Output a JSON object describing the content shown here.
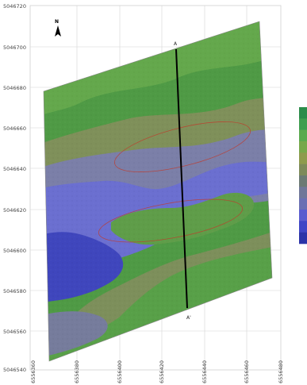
{
  "north_arrow": {
    "letter": "N",
    "icon": "north-arrow-icon"
  },
  "y_ticks": [
    "5046720",
    "5046700",
    "5046680",
    "5046660",
    "5046640",
    "5046620",
    "5046600",
    "5046580",
    "5046560",
    "5046540"
  ],
  "x_ticks": [
    "6556360",
    "6556380",
    "6556400",
    "6556420",
    "6556440",
    "6556460",
    "6556480"
  ],
  "profile": {
    "start_label": "A",
    "end_label": "A'"
  },
  "legend": {
    "colors": [
      "#2b8c4a",
      "#3f9e4f",
      "#5aaa4e",
      "#77a84a",
      "#8e9b4d",
      "#7d8a5a",
      "#6b7a74",
      "#6f7799",
      "#6a6fb3",
      "#5a5ccf",
      "#3e45c6",
      "#2b33a8"
    ]
  },
  "colors": {
    "deep_blue": "#3b43b8",
    "blue": "#6c6fd2",
    "grey_blue": "#7f82a6",
    "olive": "#7d8f5a",
    "green": "#4f9a45",
    "light_green": "#6cab4e",
    "contour_red": "#c0392b"
  }
}
